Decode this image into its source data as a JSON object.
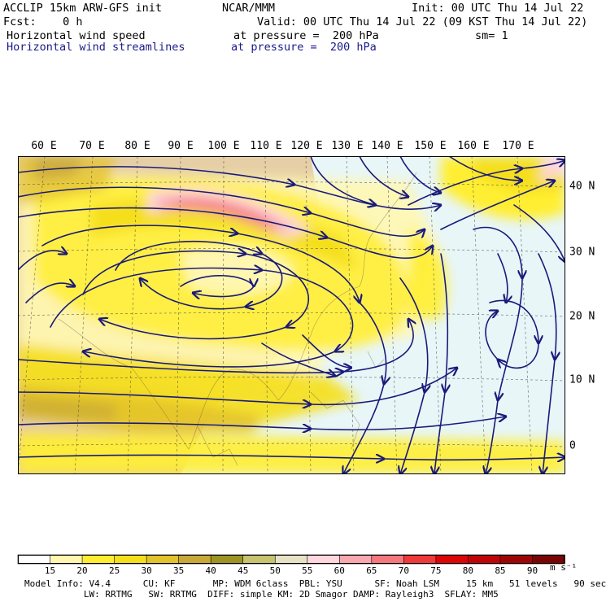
{
  "header": {
    "model_line": "ACCLIP 15km ARW-GFS init",
    "org": "NCAR/MMM",
    "init": "Init: 00 UTC Thu 14 Jul 22",
    "fcst": "Fcst:    0 h",
    "valid": "Valid: 00 UTC Thu 14 Jul 22 (09 KST Thu 14 Jul 22)",
    "field1_name": "Horizontal wind speed",
    "field1_level": "at pressure =  200 hPa",
    "sm": "sm= 1",
    "field2_name": "Horizontal wind streamlines",
    "field2_level": "at pressure =  200 hPa"
  },
  "map": {
    "lon_labels": [
      "60 E",
      "70 E",
      "80 E",
      "90 E",
      "100 E",
      "110 E",
      "120 E",
      "130 E",
      "140 E",
      "150 E",
      "160 E",
      "170 E"
    ],
    "lat_labels": [
      "40 N",
      "30 N",
      "20 N",
      "10 N",
      "0"
    ],
    "streamline_color": "#1a1a7a"
  },
  "colorbar": {
    "labels": [
      "15",
      "20",
      "25",
      "30",
      "35",
      "40",
      "45",
      "50",
      "55",
      "60",
      "65",
      "70",
      "75",
      "80",
      "85",
      "90"
    ],
    "colors": [
      "#ffffff",
      "#fff7b0",
      "#ffee30",
      "#f5df1a",
      "#e3c22c",
      "#c8a838",
      "#9d9424",
      "#c6c46e",
      "#e6e2c6",
      "#ffd6de",
      "#f8a8b0",
      "#f5787e",
      "#f03a3a",
      "#dd0505",
      "#bf0505",
      "#a00505",
      "#7a0505"
    ],
    "unit": "m s⁻¹"
  },
  "footer": {
    "line1": "Model Info: V4.4      CU: KF       MP: WDM 6class  PBL: YSU      SF: Noah LSM     15 km   51 levels   90 sec",
    "line2": "           LW: RRTMG   SW: RRTMG  DIFF: simple KM: 2D Smagor DAMP: Rayleigh3  SFLAY: MM5"
  }
}
